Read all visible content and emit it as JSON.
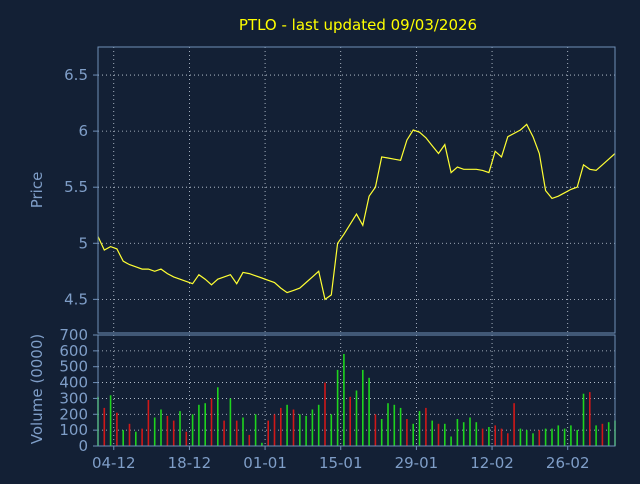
{
  "colors": {
    "background": "#132035",
    "axis": "#6f8fb8",
    "grid": "#c9d3e0",
    "text": "#7f9ec8",
    "title": "#ffff00",
    "price_line": "#ffff33",
    "volume_up": "#1ed41e",
    "volume_down": "#d01818"
  },
  "chart_data": [
    {
      "type": "line",
      "title": "PTLO - last updated 09/03/2026",
      "ylabel": "Price",
      "ylim": [
        4.2,
        6.75
      ],
      "yticks": [
        "6.5",
        "6",
        "5.5",
        "5",
        "4.5"
      ],
      "yticks_values": [
        6.5,
        6.0,
        5.5,
        5.0,
        4.5
      ],
      "grid": true,
      "x": [
        0,
        1,
        2,
        3,
        4,
        5,
        6,
        7,
        8,
        9,
        10,
        11,
        12,
        13,
        14,
        15,
        16,
        17,
        18,
        19,
        20,
        21,
        22,
        23,
        24,
        25,
        26,
        27,
        28,
        29,
        30,
        31,
        32,
        33,
        34,
        35,
        36,
        37,
        38,
        39,
        40,
        41,
        42,
        43,
        44,
        45,
        46,
        47,
        48,
        49,
        50,
        51,
        52,
        53,
        54,
        55,
        56,
        57,
        58,
        59,
        60,
        61,
        62,
        63,
        64,
        65,
        66,
        67,
        68,
        69,
        70,
        71,
        72,
        73,
        74,
        75,
        76,
        77,
        78,
        79,
        80,
        81,
        82
      ],
      "values": [
        5.06,
        4.94,
        4.97,
        4.95,
        4.84,
        4.81,
        4.79,
        4.77,
        4.77,
        4.75,
        4.77,
        4.73,
        4.7,
        4.68,
        4.66,
        4.64,
        4.72,
        4.68,
        4.63,
        4.68,
        4.7,
        4.72,
        4.64,
        4.74,
        4.73,
        4.71,
        4.69,
        4.67,
        4.65,
        4.6,
        4.56,
        4.58,
        4.6,
        4.65,
        4.7,
        4.75,
        4.5,
        4.54,
        5.0,
        5.08,
        5.17,
        5.26,
        5.16,
        5.42,
        5.5,
        5.77,
        5.76,
        5.75,
        5.74,
        5.92,
        6.01,
        5.99,
        5.94,
        5.87,
        5.8,
        5.88,
        5.63,
        5.68,
        5.66,
        5.66,
        5.66,
        5.65,
        5.63,
        5.82,
        5.77,
        5.95,
        5.98,
        6.01,
        6.06,
        5.95,
        5.8,
        5.47,
        5.4,
        5.42,
        5.45,
        5.48,
        5.5,
        5.7,
        5.66,
        5.65,
        5.7,
        5.75,
        5.8
      ]
    },
    {
      "type": "bar",
      "ylabel": "Volume (0000)",
      "ylim": [
        0,
        700
      ],
      "yticks": [
        "700",
        "600",
        "500",
        "400",
        "300",
        "200",
        "100",
        "0"
      ],
      "yticks_values": [
        700,
        600,
        500,
        400,
        300,
        200,
        100,
        0
      ],
      "xticks": [
        "04-12",
        "18-12",
        "01-01",
        "15-01",
        "29-01",
        "12-02",
        "26-02"
      ],
      "xticks_positions": [
        2.5,
        14.5,
        26.5,
        38.5,
        50.5,
        62.5,
        74.5
      ],
      "grid": true,
      "series": [
        {
          "values": [
            310,
            240,
            320,
            210,
            100,
            140,
            90,
            110,
            290,
            180,
            230,
            190,
            160,
            220,
            90,
            200,
            260,
            270,
            300,
            370,
            160,
            300,
            160,
            180,
            70,
            200,
            20,
            160,
            200,
            240,
            260,
            230,
            200,
            190,
            230,
            260,
            400,
            200,
            480,
            580,
            310,
            350,
            480,
            430,
            200,
            170,
            270,
            260,
            240,
            170,
            140,
            220,
            240,
            160,
            140,
            140,
            60,
            170,
            150,
            180,
            150,
            110,
            120,
            130,
            110,
            80,
            270,
            110,
            100,
            80,
            100,
            110,
            110,
            130,
            110,
            130,
            100,
            330,
            340,
            130,
            140,
            150,
            160
          ],
          "up": [
            true,
            false,
            true,
            false,
            true,
            false,
            true,
            false,
            false,
            true,
            true,
            false,
            false,
            true,
            false,
            true,
            true,
            true,
            false,
            true,
            false,
            true,
            false,
            true,
            false,
            true,
            true,
            false,
            false,
            false,
            true,
            false,
            true,
            true,
            true,
            true,
            false,
            true,
            true,
            true,
            false,
            true,
            true,
            true,
            false,
            true,
            true,
            true,
            true,
            false,
            true,
            true,
            false,
            true,
            false,
            true,
            true,
            true,
            true,
            true,
            true,
            false,
            true,
            false,
            false,
            false,
            false,
            true,
            true,
            true,
            false,
            true,
            true,
            true,
            true,
            true,
            true,
            true,
            false,
            true,
            false,
            true,
            true
          ]
        }
      ]
    }
  ]
}
